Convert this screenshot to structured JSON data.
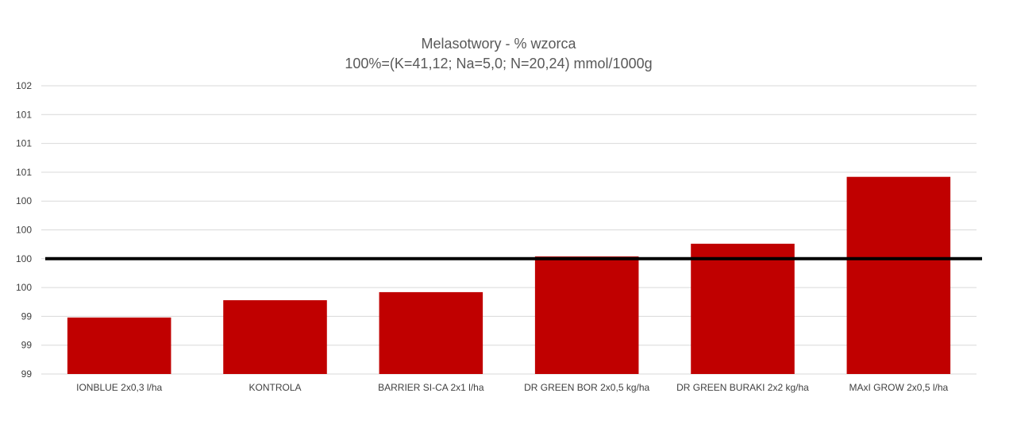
{
  "chart_data": {
    "type": "bar",
    "title": "Melasotwory - % wzorca",
    "subtitle": "100%=(K=41,12; Na=5,0; N=20,24) mmol/1000g",
    "categories": [
      "IONBLUE 2x0,3  l/ha",
      "KONTROLA",
      "BARRIER SI-CA 2x1  l/ha",
      "DR GREEN BOR 2x0,5  kg/ha",
      "DR GREEN BURAKI 2x2  kg/ha",
      "MAxI GROW 2x0,5  l/ha"
    ],
    "series": [
      {
        "values": [
          99.49,
          99.64,
          99.71,
          100.02,
          100.13,
          100.71
        ],
        "color": "#c00000"
      }
    ],
    "ylim": [
      99.0,
      101.5
    ],
    "yticks": [
      99.0,
      99.25,
      99.5,
      99.75,
      100.0,
      100.25,
      100.5,
      100.75,
      101.0,
      101.25,
      101.5
    ],
    "ytick_labels": [
      "99",
      "99",
      "99",
      "100",
      "100",
      "100",
      "100",
      "101",
      "101",
      "101",
      "102"
    ],
    "reference_line": {
      "value": 100.0,
      "color": "#000000"
    },
    "grid": true,
    "legend": "none",
    "xlabel": "",
    "ylabel": ""
  }
}
